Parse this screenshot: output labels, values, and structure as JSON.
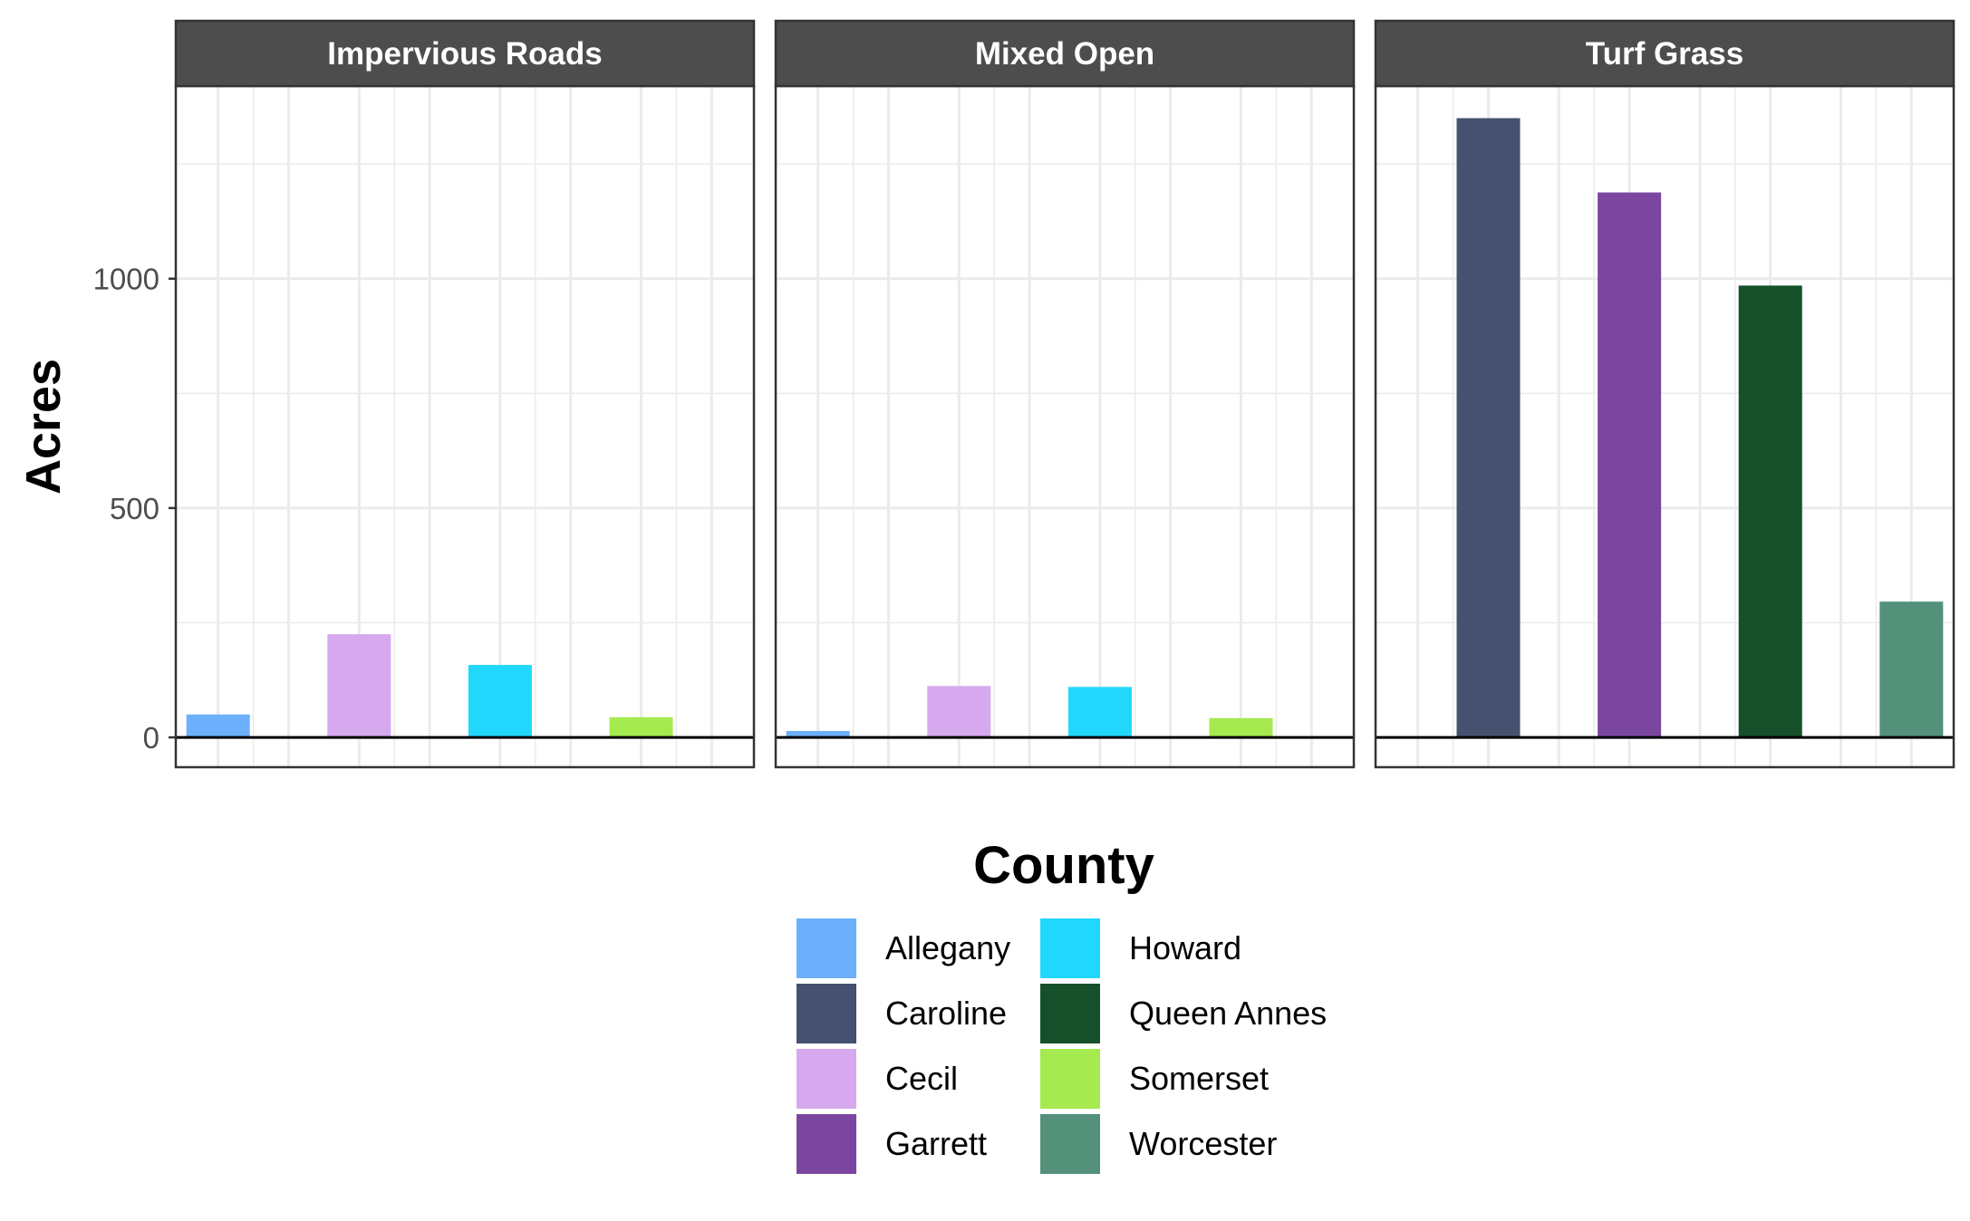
{
  "chart_data": {
    "type": "bar",
    "facet_by": "land use",
    "panels": [
      {
        "title": "Impervious Roads",
        "bars": [
          {
            "county": "Allegany",
            "value": 50
          },
          {
            "county": "Cecil",
            "value": 225
          },
          {
            "county": "Howard",
            "value": 158
          },
          {
            "county": "Somerset",
            "value": 44
          }
        ]
      },
      {
        "title": "Mixed Open",
        "bars": [
          {
            "county": "Allegany",
            "value": 14
          },
          {
            "county": "Cecil",
            "value": 112
          },
          {
            "county": "Howard",
            "value": 110
          },
          {
            "county": "Somerset",
            "value": 42
          }
        ]
      },
      {
        "title": "Turf Grass",
        "bars": [
          {
            "county": "Caroline",
            "value": 1350
          },
          {
            "county": "Garrett",
            "value": 1188
          },
          {
            "county": "Queen Annes",
            "value": 985
          },
          {
            "county": "Worcester",
            "value": 296
          }
        ]
      }
    ],
    "ylabel": "Acres",
    "xlabel": "",
    "ylim": [
      -65,
      1420
    ],
    "yticks": [
      0,
      500,
      1000
    ],
    "grid": true,
    "legend": {
      "title": "County",
      "position": "bottom",
      "items": [
        {
          "name": "Allegany",
          "color": "#6CB0FB"
        },
        {
          "name": "Caroline",
          "color": "#46506F"
        },
        {
          "name": "Cecil",
          "color": "#D6A9EF"
        },
        {
          "name": "Garrett",
          "color": "#7B46A0"
        },
        {
          "name": "Howard",
          "color": "#22D7FC"
        },
        {
          "name": "Queen Annes",
          "color": "#15502A"
        },
        {
          "name": "Somerset",
          "color": "#A5EA4E"
        },
        {
          "name": "Worcester",
          "color": "#53917B"
        }
      ]
    }
  }
}
